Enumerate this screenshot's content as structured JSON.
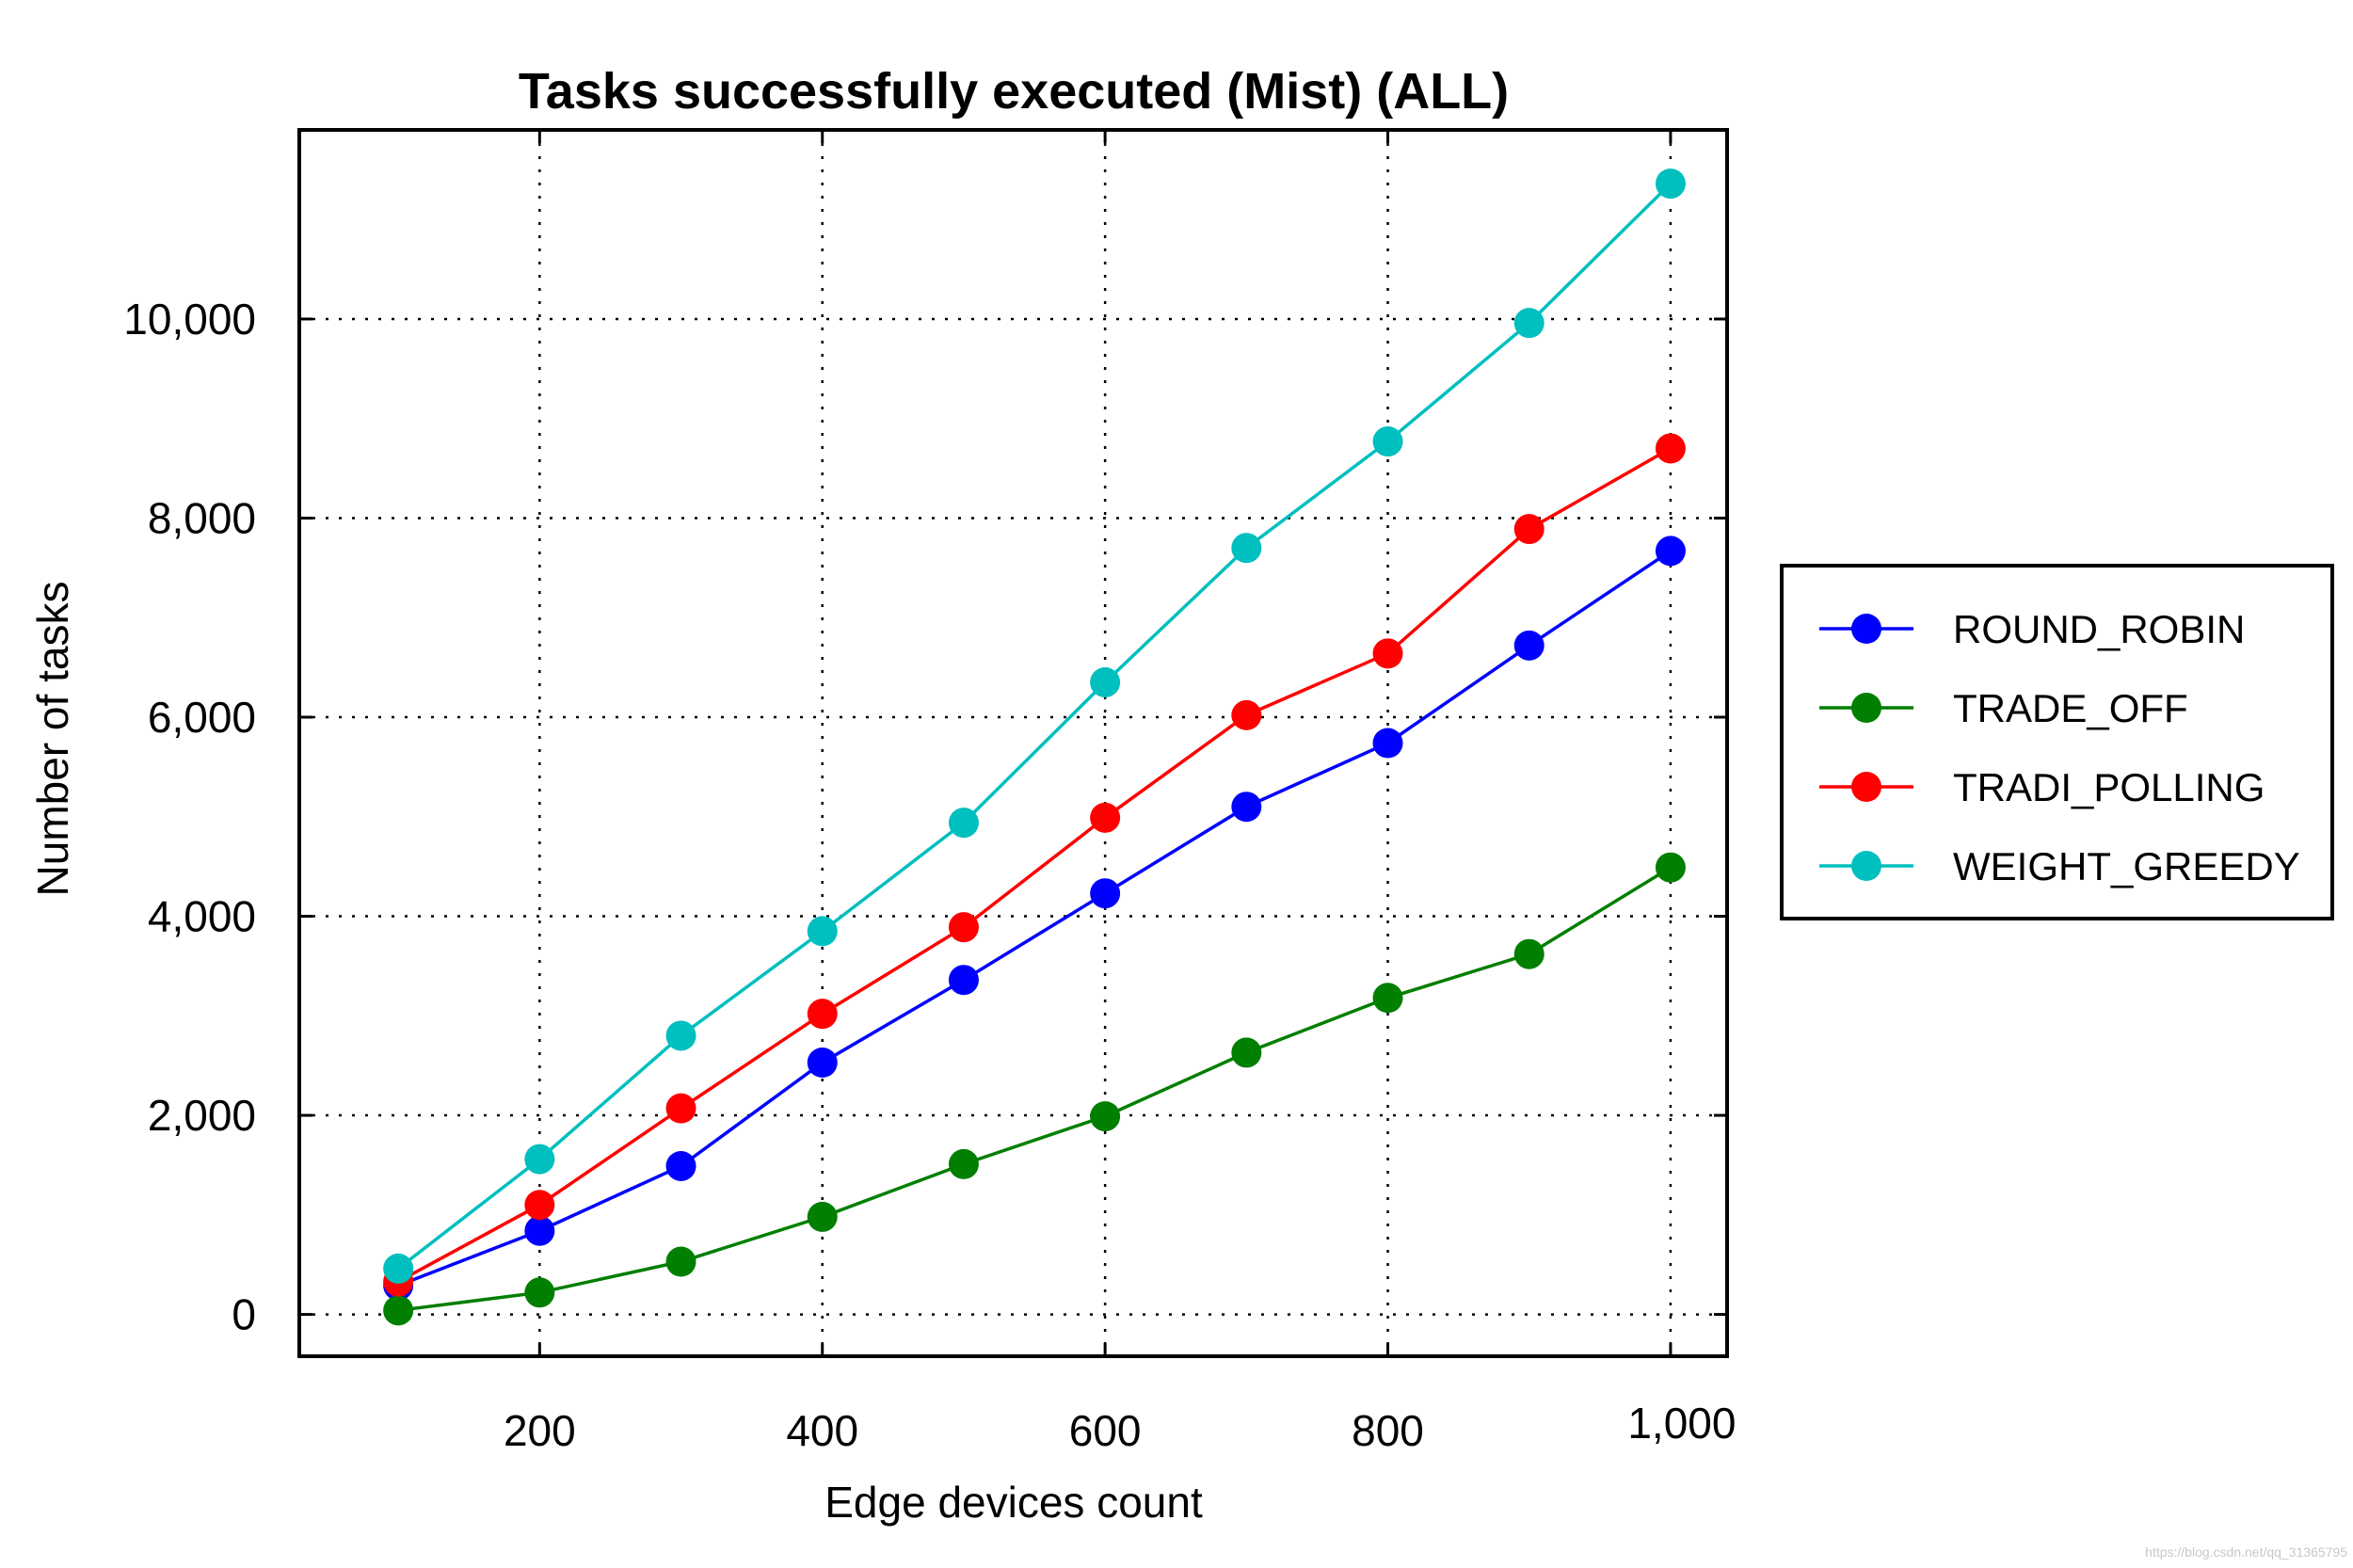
{
  "chart_data": {
    "type": "line",
    "title": "Tasks successfully executed (Mist) (ALL)",
    "xlabel": "Edge devices count",
    "ylabel": "Number of tasks",
    "x": [
      100,
      200,
      300,
      400,
      500,
      600,
      700,
      800,
      900,
      1000
    ],
    "xlim": [
      30,
      1040
    ],
    "ylim": [
      -420,
      11900
    ],
    "xticks": [
      200,
      400,
      600,
      800,
      1000
    ],
    "xtick_labels": [
      "200",
      "400",
      "600",
      "800",
      "1,000"
    ],
    "yticks": [
      0,
      2000,
      4000,
      6000,
      8000,
      10000
    ],
    "ytick_labels": [
      "0",
      "2,000",
      "4,000",
      "6,000",
      "8,000",
      "10,000"
    ],
    "grid": true,
    "legend_position": "right",
    "series": [
      {
        "name": "ROUND_ROBIN",
        "color": "#0000ff",
        "values": [
          290,
          840,
          1490,
          2530,
          3360,
          4230,
          5100,
          5740,
          6720,
          7670
        ]
      },
      {
        "name": "TRADE_OFF",
        "color": "#007f00",
        "values": [
          40,
          220,
          530,
          980,
          1510,
          1990,
          2630,
          3180,
          3620,
          4490
        ]
      },
      {
        "name": "TRADI_POLLING",
        "color": "#ff0000",
        "values": [
          330,
          1100,
          2070,
          3020,
          3890,
          4990,
          6020,
          6640,
          7890,
          8700
        ]
      },
      {
        "name": "WEIGHT_GREEDY",
        "color": "#00bfbf",
        "values": [
          460,
          1560,
          2800,
          3850,
          4940,
          6350,
          7700,
          8770,
          9960,
          11360
        ]
      }
    ]
  },
  "watermark": "https://blog.csdn.net/qq_31365795"
}
